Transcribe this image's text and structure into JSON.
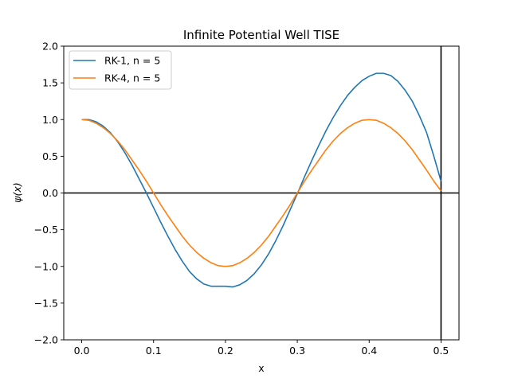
{
  "chart_data": {
    "type": "line",
    "title": "Infinite Potential Well TISE",
    "xlabel": "x",
    "ylabel": "ψ(x)",
    "xlim": [
      -0.025,
      0.525
    ],
    "ylim": [
      -2.0,
      2.0
    ],
    "x_ticks": [
      {
        "value": 0.0,
        "label": "0.0"
      },
      {
        "value": 0.1,
        "label": "0.1"
      },
      {
        "value": 0.2,
        "label": "0.2"
      },
      {
        "value": 0.3,
        "label": "0.3"
      },
      {
        "value": 0.4,
        "label": "0.4"
      },
      {
        "value": 0.5,
        "label": "0.5"
      }
    ],
    "y_ticks": [
      {
        "value": -2.0,
        "label": "−2.0"
      },
      {
        "value": -1.5,
        "label": "−1.5"
      },
      {
        "value": -1.0,
        "label": "−1.0"
      },
      {
        "value": -0.5,
        "label": "−0.5"
      },
      {
        "value": 0.0,
        "label": "0.0"
      },
      {
        "value": 0.5,
        "label": "0.5"
      },
      {
        "value": 1.0,
        "label": "1.0"
      },
      {
        "value": 1.5,
        "label": "1.5"
      },
      {
        "value": 2.0,
        "label": "2.0"
      }
    ],
    "grid": false,
    "legend_position": "top-left",
    "reference_lines": [
      {
        "orientation": "horizontal",
        "value": 0.0,
        "color": "#000000"
      },
      {
        "orientation": "vertical",
        "value": 0.5,
        "color": "#000000"
      }
    ],
    "series": [
      {
        "name": "RK-1, n = 5",
        "color": "#1f77b4",
        "x": [
          0.0,
          0.01,
          0.02,
          0.03,
          0.04,
          0.05,
          0.06,
          0.07,
          0.08,
          0.09,
          0.1,
          0.11,
          0.12,
          0.13,
          0.14,
          0.15,
          0.16,
          0.17,
          0.18,
          0.19,
          0.2,
          0.21,
          0.22,
          0.23,
          0.24,
          0.25,
          0.26,
          0.27,
          0.28,
          0.29,
          0.3,
          0.31,
          0.32,
          0.33,
          0.34,
          0.35,
          0.36,
          0.37,
          0.38,
          0.39,
          0.4,
          0.41,
          0.42,
          0.43,
          0.44,
          0.45,
          0.46,
          0.47,
          0.48,
          0.49,
          0.5
        ],
        "y": [
          1.0,
          1.0,
          0.97,
          0.91,
          0.82,
          0.7,
          0.55,
          0.38,
          0.19,
          0.0,
          -0.2,
          -0.4,
          -0.59,
          -0.77,
          -0.93,
          -1.07,
          -1.17,
          -1.24,
          -1.27,
          -1.27,
          -1.27,
          -1.28,
          -1.25,
          -1.19,
          -1.1,
          -0.98,
          -0.83,
          -0.65,
          -0.45,
          -0.23,
          -0.01,
          0.22,
          0.44,
          0.65,
          0.85,
          1.03,
          1.19,
          1.33,
          1.44,
          1.53,
          1.59,
          1.63,
          1.63,
          1.6,
          1.52,
          1.4,
          1.25,
          1.05,
          0.82,
          0.5,
          0.16
        ]
      },
      {
        "name": "RK-4, n = 5",
        "color": "#ff7f0e",
        "x": [
          0.0,
          0.01,
          0.02,
          0.03,
          0.04,
          0.05,
          0.06,
          0.07,
          0.08,
          0.09,
          0.1,
          0.11,
          0.12,
          0.13,
          0.14,
          0.15,
          0.16,
          0.17,
          0.18,
          0.19,
          0.2,
          0.21,
          0.22,
          0.23,
          0.24,
          0.25,
          0.26,
          0.27,
          0.28,
          0.29,
          0.3,
          0.31,
          0.32,
          0.33,
          0.34,
          0.35,
          0.36,
          0.37,
          0.38,
          0.39,
          0.4,
          0.41,
          0.42,
          0.43,
          0.44,
          0.45,
          0.46,
          0.47,
          0.48,
          0.49,
          0.5
        ],
        "y": [
          1.0,
          0.99,
          0.95,
          0.89,
          0.81,
          0.71,
          0.59,
          0.45,
          0.31,
          0.16,
          0.0,
          -0.16,
          -0.31,
          -0.45,
          -0.59,
          -0.71,
          -0.81,
          -0.89,
          -0.95,
          -0.99,
          -1.0,
          -0.99,
          -0.95,
          -0.89,
          -0.81,
          -0.71,
          -0.59,
          -0.45,
          -0.31,
          -0.16,
          0.0,
          0.16,
          0.31,
          0.45,
          0.59,
          0.71,
          0.81,
          0.89,
          0.95,
          0.99,
          1.0,
          0.99,
          0.95,
          0.89,
          0.81,
          0.71,
          0.59,
          0.45,
          0.31,
          0.16,
          0.03
        ]
      }
    ]
  }
}
